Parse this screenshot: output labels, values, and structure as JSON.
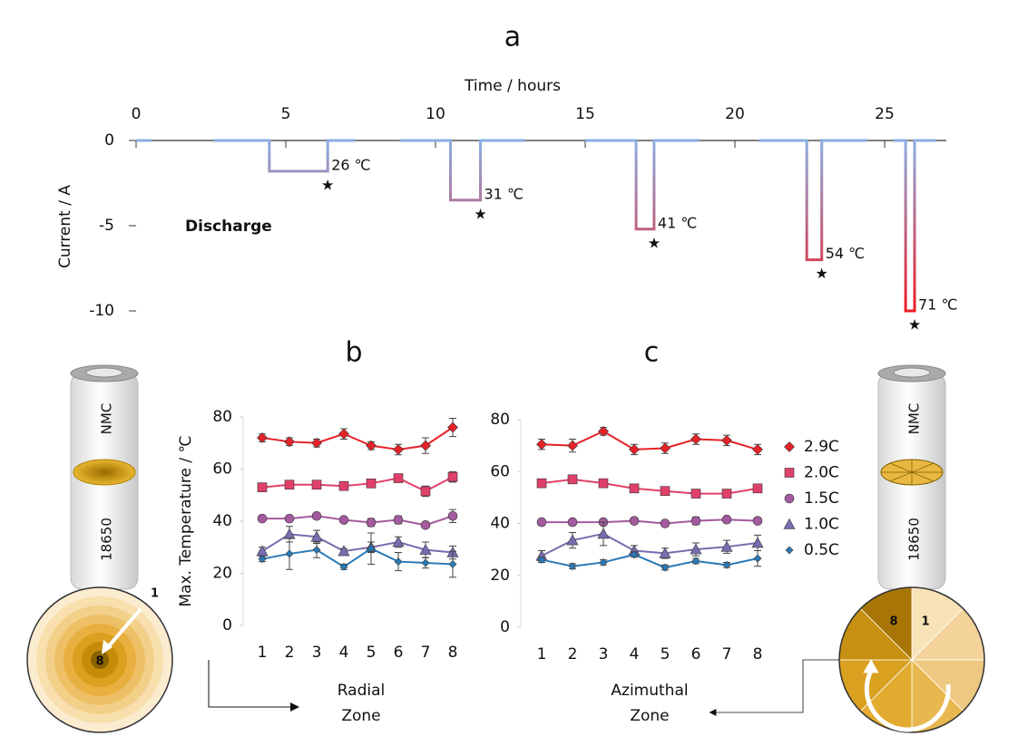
{
  "chart_data": [
    {
      "type": "step-line",
      "title": "a",
      "xlabel": "Time / hours",
      "ylabel": "Current / A",
      "x": [
        0,
        0.5,
        null,
        2.6,
        4.45,
        4.45,
        6.4,
        6.4,
        7.3,
        null,
        8.8,
        10.5,
        10.5,
        11.5,
        11.5,
        13,
        null,
        15,
        16.7,
        16.7,
        17.3,
        17.3,
        18.8,
        null,
        20.8,
        22.4,
        22.4,
        22.9,
        22.9,
        24.4,
        null,
        25.3,
        25.7,
        25.7,
        26.0,
        26.0,
        26.7
      ],
      "values": [
        0,
        0,
        null,
        0,
        0,
        -1.8,
        -1.8,
        0,
        0,
        null,
        0,
        0,
        -3.5,
        -3.5,
        0,
        0,
        null,
        0,
        0,
        -5.2,
        -5.2,
        0,
        0,
        null,
        0,
        0,
        -7,
        -7,
        0,
        0,
        null,
        0,
        0,
        -10,
        -10,
        0,
        0
      ],
      "colors": [
        "#8aaee3",
        "#ee1c25"
      ],
      "xlim": [
        0,
        27
      ],
      "xticks": [
        0,
        5,
        10,
        15,
        20,
        25
      ],
      "ylim": [
        -10,
        0
      ],
      "yticks": [
        0,
        -5,
        -10
      ],
      "annotations": [
        {
          "text": "26 ℃",
          "x": 6.4,
          "y": -1.8
        },
        {
          "text": "31 ℃",
          "x": 11.5,
          "y": -3.5
        },
        {
          "text": "41 ℃",
          "x": 17.3,
          "y": -5.2
        },
        {
          "text": "54 ℃",
          "x": 22.9,
          "y": -7
        },
        {
          "text": "71 ℃",
          "x": 26.0,
          "y": -10
        }
      ],
      "label": "Discharge"
    },
    {
      "type": "line-error",
      "title": "b",
      "ylabel": "Max. Temperature / ℃",
      "xlabel": [
        "Radial",
        "Zone"
      ],
      "categories": [
        "1",
        "2",
        "3",
        "4",
        "5",
        "6",
        "7",
        "8"
      ],
      "ylim": [
        0,
        80
      ],
      "yticks": [
        0,
        20,
        40,
        60,
        80
      ],
      "series": [
        {
          "color": "#e52228",
          "marker": "diamond",
          "values": [
            72,
            70.5,
            70,
            73.5,
            69,
            67.5,
            69,
            76
          ],
          "errors": [
            1.5,
            1.5,
            1.5,
            2,
            1.5,
            2,
            3,
            3.5
          ]
        },
        {
          "color": "#e0406a",
          "marker": "square",
          "values": [
            53,
            54,
            54,
            53.5,
            54.5,
            56.5,
            51.5,
            57
          ],
          "errors": [
            1,
            1,
            1,
            1.5,
            1,
            1,
            2,
            2
          ]
        },
        {
          "color": "#a35a9e",
          "marker": "circle",
          "values": [
            41,
            41,
            42,
            40.5,
            39.5,
            40.5,
            38.5,
            42
          ],
          "errors": [
            1,
            1,
            1,
            1,
            1.5,
            1.5,
            1,
            2.5
          ]
        },
        {
          "color": "#7a6cb0",
          "marker": "triangle",
          "values": [
            28.5,
            35,
            34,
            28.5,
            30,
            32,
            29,
            28
          ],
          "errors": [
            1.5,
            3,
            2.5,
            1,
            2,
            2,
            3,
            2.5
          ]
        },
        {
          "color": "#2a7ab8",
          "marker": "small-diamond",
          "values": [
            25.5,
            27.5,
            29,
            22.5,
            29.5,
            24.5,
            24,
            23.5
          ],
          "errors": [
            1,
            6,
            3,
            1,
            6,
            3.5,
            2,
            5
          ]
        }
      ]
    },
    {
      "type": "line-error",
      "title": "c",
      "xlabel": [
        "Azimuthal",
        "Zone"
      ],
      "categories": [
        "1",
        "2",
        "3",
        "4",
        "5",
        "6",
        "7",
        "8"
      ],
      "ylim": [
        0,
        80
      ],
      "yticks": [
        0,
        20,
        40,
        60,
        80
      ],
      "legend": "right",
      "series": [
        {
          "name": "2.9C",
          "color": "#e52228",
          "marker": "diamond",
          "values": [
            70.5,
            70,
            75.5,
            68.5,
            69,
            72.5,
            72,
            68.5
          ],
          "errors": [
            2,
            2.5,
            1.5,
            2,
            2,
            2,
            2,
            2
          ]
        },
        {
          "name": "2.0C",
          "color": "#e0406a",
          "marker": "square",
          "values": [
            55.5,
            57,
            55.5,
            53.5,
            52.5,
            51.5,
            51.5,
            53.5
          ],
          "errors": [
            1.5,
            1,
            1.5,
            1,
            1,
            1,
            1,
            1.5
          ]
        },
        {
          "name": "1.5C",
          "color": "#a35a9e",
          "marker": "circle",
          "values": [
            40.5,
            40.5,
            40.5,
            41,
            40,
            41,
            41.5,
            41
          ],
          "errors": [
            1,
            1,
            1,
            1,
            1,
            1.5,
            1,
            1
          ]
        },
        {
          "name": "1.0C",
          "color": "#7a6cb0",
          "marker": "triangle",
          "values": [
            27.5,
            33.5,
            36,
            29.5,
            28.5,
            30,
            31,
            32.5
          ],
          "errors": [
            2,
            3,
            4.5,
            2,
            2,
            2.5,
            2.5,
            3
          ]
        },
        {
          "name": "0.5C",
          "color": "#2a7ab8",
          "marker": "small-diamond",
          "values": [
            26,
            23.5,
            25,
            28,
            23,
            25.5,
            24,
            26.5
          ],
          "errors": [
            1,
            1,
            1,
            1,
            1,
            1,
            1,
            3
          ]
        }
      ]
    }
  ],
  "illustrations": {
    "radial_cell": [
      "NMC",
      "18650"
    ],
    "radial_disc": [
      "1",
      "8"
    ],
    "azimuthal_cell": [
      "NMC",
      "18650"
    ],
    "azimuthal_disc": [
      "8",
      "1"
    ]
  }
}
